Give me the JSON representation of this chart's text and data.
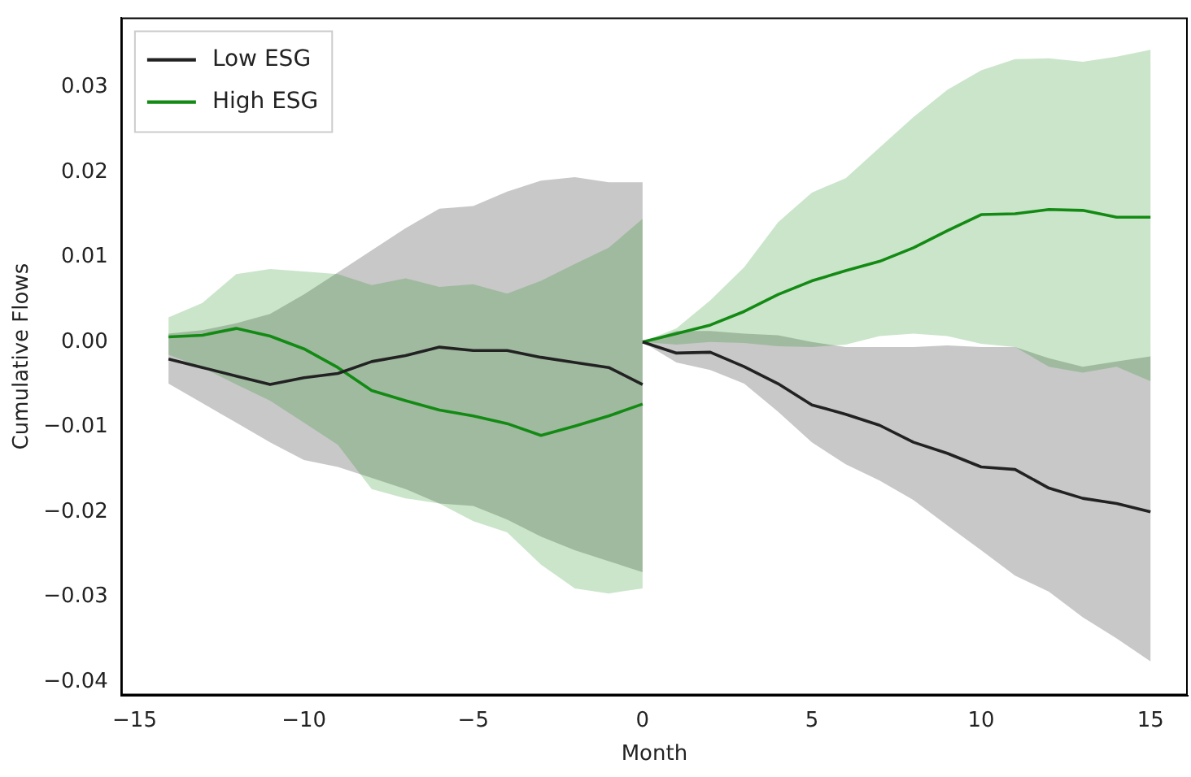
{
  "chart_data": {
    "type": "line",
    "xlabel": "Month",
    "ylabel": "Cumulative Flows",
    "series": [
      {
        "name": "Low ESG",
        "color": "#222222",
        "x": [
          -14,
          -13,
          -12,
          -11,
          -10,
          -9,
          -8,
          -7,
          -6,
          -5,
          -4,
          -3,
          -2,
          -1,
          0
        ],
        "values": [
          -0.002,
          -0.003,
          -0.004,
          -0.005,
          -0.0042,
          -0.0037,
          -0.0023,
          -0.0016,
          -0.0006,
          -0.001,
          -0.001,
          -0.0018,
          -0.0024,
          -0.003,
          -0.005
        ],
        "lower": [
          -0.0049,
          -0.0072,
          -0.0095,
          -0.0118,
          -0.0139,
          -0.0147,
          -0.016,
          -0.0173,
          -0.019,
          -0.0193,
          -0.0209,
          -0.0229,
          -0.0245,
          -0.0258,
          -0.0271
        ],
        "upper": [
          0.001,
          0.0014,
          0.0022,
          0.0033,
          0.0056,
          0.0082,
          0.0108,
          0.0134,
          0.0157,
          0.016,
          0.0177,
          0.019,
          0.0194,
          0.0188,
          0.0188
        ]
      },
      {
        "name": "High ESG",
        "color": "#138a13",
        "x": [
          -14,
          -13,
          -12,
          -11,
          -10,
          -9,
          -8,
          -7,
          -6,
          -5,
          -4,
          -3,
          -2,
          -1,
          0
        ],
        "values": [
          0.0006,
          0.0008,
          0.0016,
          0.0007,
          -0.0008,
          -0.003,
          -0.0057,
          -0.0069,
          -0.008,
          -0.0087,
          -0.0096,
          -0.011,
          -0.0099,
          -0.0087,
          -0.0073
        ],
        "lower": [
          -0.0015,
          -0.003,
          -0.005,
          -0.0069,
          -0.0095,
          -0.0121,
          -0.0173,
          -0.0184,
          -0.019,
          -0.0211,
          -0.0224,
          -0.0262,
          -0.029,
          -0.0296,
          -0.029
        ],
        "upper": [
          0.0029,
          0.0046,
          0.008,
          0.0086,
          0.0083,
          0.008,
          0.0067,
          0.0075,
          0.0065,
          0.0068,
          0.0057,
          0.0072,
          0.0092,
          0.0111,
          0.0145
        ]
      },
      {
        "color": "#222222",
        "x": [
          0,
          1,
          2,
          3,
          4,
          5,
          6,
          7,
          8,
          9,
          10,
          11,
          12,
          13,
          14,
          15
        ],
        "values": [
          0,
          -0.0013,
          -0.0012,
          -0.0029,
          -0.0049,
          -0.0074,
          -0.0085,
          -0.0098,
          -0.0118,
          -0.0131,
          -0.0147,
          -0.015,
          -0.0172,
          -0.0184,
          -0.019,
          -0.02
        ],
        "lower": [
          0,
          -0.0024,
          -0.0033,
          -0.0049,
          -0.0082,
          -0.0118,
          -0.0144,
          -0.0163,
          -0.0186,
          -0.0216,
          -0.0245,
          -0.0275,
          -0.0294,
          -0.0324,
          -0.0349,
          -0.0376
        ],
        "upper": [
          0,
          0.0013,
          0.0013,
          0.001,
          0.0008,
          0,
          -0.0006,
          -0.0006,
          -0.0006,
          -0.0004,
          -0.0006,
          -0.0006,
          -0.0019,
          -0.0029,
          -0.0023,
          -0.0017
        ]
      },
      {
        "color": "#138a13",
        "x": [
          0,
          1,
          2,
          3,
          4,
          5,
          6,
          7,
          8,
          9,
          10,
          11,
          12,
          13,
          14,
          15
        ],
        "values": [
          0,
          0.001,
          0.002,
          0.0036,
          0.0056,
          0.0072,
          0.0084,
          0.0095,
          0.0111,
          0.0131,
          0.015,
          0.0151,
          0.0156,
          0.0155,
          0.0147,
          0.0147
        ],
        "lower": [
          0,
          -0.0003,
          0,
          -0.0001,
          -0.0005,
          -0.0006,
          -0.0003,
          0.0007,
          0.001,
          0.0007,
          -0.0002,
          -0.0006,
          -0.0029,
          -0.0036,
          -0.0029,
          -0.0046
        ],
        "upper": [
          0,
          0.0016,
          0.0049,
          0.0088,
          0.0141,
          0.0176,
          0.0193,
          0.0229,
          0.0265,
          0.0297,
          0.032,
          0.0333,
          0.0334,
          0.033,
          0.0336,
          0.0344
        ]
      }
    ],
    "xlim": [
      -15.4,
      16.1
    ],
    "ylim": [
      -0.0416,
      0.0382
    ],
    "xticks": [
      {
        "value": -15,
        "label": "−15"
      },
      {
        "value": -10,
        "label": "−10"
      },
      {
        "value": -5,
        "label": "−5"
      },
      0,
      5,
      10,
      15
    ],
    "yticks": [
      {
        "value": -0.04,
        "label": "−0.04"
      },
      {
        "value": -0.03,
        "label": "−0.03"
      },
      {
        "value": -0.02,
        "label": "−0.02"
      },
      {
        "value": -0.01,
        "label": "−0.01"
      },
      {
        "value": 0,
        "label": "0.00"
      },
      0.01,
      0.02,
      0.03
    ],
    "grid": false,
    "legend": "top left"
  }
}
